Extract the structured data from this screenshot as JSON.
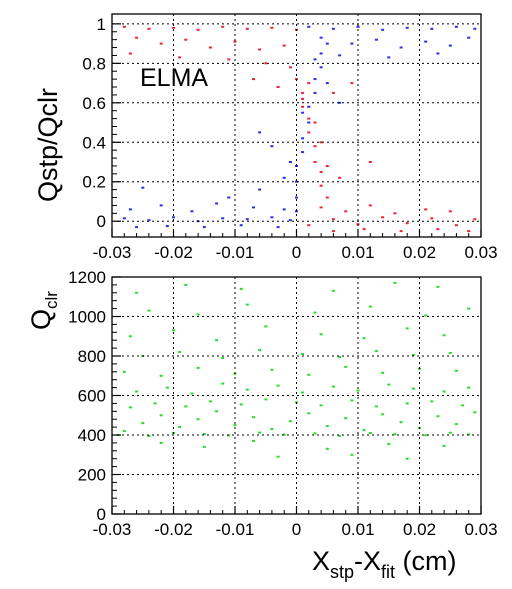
{
  "chart_data": [
    {
      "type": "scatter",
      "panel": "top",
      "title": "",
      "xlabel": "",
      "ylabel": "Qstp/Qclr",
      "annotation": "ELMA",
      "xlim": [
        -0.03,
        0.03
      ],
      "ylim": [
        -0.08,
        1.05
      ],
      "x_ticks": [
        -0.03,
        -0.02,
        -0.01,
        0,
        0.01,
        0.02,
        0.03
      ],
      "x_tick_labels": [
        "-0.03",
        "-0.02",
        "-0.01",
        "0",
        "0.01",
        "0.02",
        "0.03"
      ],
      "y_ticks": [
        0,
        0.2,
        0.4,
        0.6,
        0.8,
        1
      ],
      "y_tick_labels": [
        "0",
        "0.2",
        "0.4",
        "0.6",
        "0.8",
        "1"
      ],
      "grid": true,
      "series": [
        {
          "color": "#e8262b",
          "points": [
            [
              -0.028,
              0.985
            ],
            [
              -0.024,
              0.975
            ],
            [
              -0.02,
              0.98
            ],
            [
              -0.016,
              0.97
            ],
            [
              -0.012,
              0.985
            ],
            [
              -0.008,
              0.975
            ],
            [
              -0.004,
              0.98
            ],
            [
              0.0,
              0.97
            ],
            [
              -0.026,
              0.93
            ],
            [
              -0.022,
              0.9
            ],
            [
              -0.018,
              0.92
            ],
            [
              -0.014,
              0.88
            ],
            [
              -0.01,
              0.91
            ],
            [
              -0.006,
              0.87
            ],
            [
              -0.002,
              0.89
            ],
            [
              -0.027,
              0.85
            ],
            [
              -0.019,
              0.83
            ],
            [
              -0.011,
              0.82
            ],
            [
              -0.005,
              0.8
            ],
            [
              -0.001,
              0.78
            ],
            [
              0.0,
              0.72
            ],
            [
              0.001,
              0.65
            ],
            [
              0.001,
              0.58
            ],
            [
              0.002,
              0.52
            ],
            [
              0.002,
              0.45
            ],
            [
              0.003,
              0.38
            ],
            [
              0.003,
              0.3
            ],
            [
              0.004,
              0.25
            ],
            [
              0.004,
              0.18
            ],
            [
              0.005,
              0.12
            ],
            [
              0.002,
              0.7
            ],
            [
              0.001,
              0.62
            ],
            [
              0.003,
              0.5
            ],
            [
              0.004,
              0.4
            ],
            [
              0.005,
              0.28
            ],
            [
              -0.003,
              0.68
            ],
            [
              -0.007,
              0.72
            ],
            [
              0.006,
              0.65
            ],
            [
              0.009,
              0.7
            ],
            [
              0.007,
              0.22
            ],
            [
              0.012,
              0.3
            ],
            [
              0.002,
              -0.02
            ],
            [
              0.006,
              0.01
            ],
            [
              0.01,
              -0.015
            ],
            [
              0.014,
              0.02
            ],
            [
              0.018,
              -0.01
            ],
            [
              0.022,
              0.015
            ],
            [
              0.026,
              -0.02
            ],
            [
              0.029,
              0.01
            ],
            [
              0.004,
              0.07
            ],
            [
              0.008,
              0.05
            ],
            [
              0.012,
              0.08
            ],
            [
              0.016,
              0.04
            ],
            [
              0.021,
              0.06
            ],
            [
              0.025,
              0.05
            ],
            [
              0.006,
              -0.05
            ],
            [
              0.011,
              -0.04
            ],
            [
              0.017,
              -0.05
            ],
            [
              0.023,
              -0.04
            ],
            [
              0.028,
              -0.05
            ]
          ]
        },
        {
          "color": "#2a2ee6",
          "points": [
            [
              -0.028,
              0.015
            ],
            [
              -0.024,
              0.005
            ],
            [
              -0.02,
              0.02
            ],
            [
              -0.016,
              0.0
            ],
            [
              -0.012,
              0.015
            ],
            [
              -0.008,
              0.01
            ],
            [
              -0.004,
              0.02
            ],
            [
              -0.001,
              0.005
            ],
            [
              -0.026,
              -0.03
            ],
            [
              -0.021,
              -0.025
            ],
            [
              -0.015,
              -0.03
            ],
            [
              -0.009,
              -0.02
            ],
            [
              -0.003,
              -0.03
            ],
            [
              -0.027,
              0.06
            ],
            [
              -0.022,
              0.08
            ],
            [
              -0.017,
              0.05
            ],
            [
              -0.013,
              0.09
            ],
            [
              -0.007,
              0.07
            ],
            [
              -0.002,
              0.06
            ],
            [
              -0.025,
              0.17
            ],
            [
              -0.011,
              0.12
            ],
            [
              -0.006,
              0.16
            ],
            [
              0.0,
              0.05
            ],
            [
              0.0,
              0.12
            ],
            [
              0.0,
              0.2
            ],
            [
              0.0,
              0.28
            ],
            [
              0.001,
              0.35
            ],
            [
              0.001,
              0.42
            ],
            [
              0.002,
              0.5
            ],
            [
              0.002,
              0.58
            ],
            [
              0.003,
              0.65
            ],
            [
              0.003,
              0.72
            ],
            [
              0.004,
              0.78
            ],
            [
              0.004,
              0.85
            ],
            [
              0.005,
              0.9
            ],
            [
              -0.001,
              0.3
            ],
            [
              -0.002,
              0.22
            ],
            [
              0.001,
              0.55
            ],
            [
              0.003,
              0.82
            ],
            [
              -0.004,
              0.38
            ],
            [
              0.005,
              0.7
            ],
            [
              -0.006,
              0.45
            ],
            [
              0.007,
              0.6
            ],
            [
              0.002,
              0.985
            ],
            [
              0.006,
              0.975
            ],
            [
              0.01,
              0.985
            ],
            [
              0.014,
              0.97
            ],
            [
              0.018,
              0.98
            ],
            [
              0.022,
              0.975
            ],
            [
              0.026,
              0.985
            ],
            [
              0.029,
              0.975
            ],
            [
              0.004,
              0.93
            ],
            [
              0.009,
              0.9
            ],
            [
              0.013,
              0.92
            ],
            [
              0.017,
              0.88
            ],
            [
              0.021,
              0.91
            ],
            [
              0.025,
              0.89
            ],
            [
              0.028,
              0.93
            ],
            [
              0.007,
              0.84
            ],
            [
              0.015,
              0.83
            ],
            [
              0.023,
              0.85
            ]
          ]
        }
      ]
    },
    {
      "type": "scatter",
      "panel": "bottom",
      "title": "",
      "xlabel": "X_stp-X_fit (cm)",
      "xlabel_main": "X",
      "xlabel_sub1": "stp",
      "xlabel_mid": "-X",
      "xlabel_sub2": "fit",
      "xlabel_tail": " (cm)",
      "ylabel": "Q_clr",
      "ylabel_main": "Q",
      "ylabel_sub": "clr",
      "xlim": [
        -0.03,
        0.03
      ],
      "ylim": [
        0,
        1200
      ],
      "x_ticks": [
        -0.03,
        -0.02,
        -0.01,
        0,
        0.01,
        0.02,
        0.03
      ],
      "x_tick_labels": [
        "-0.03",
        "-0.02",
        "-0.01",
        "0",
        "0.01",
        "0.02",
        "0.03"
      ],
      "y_ticks": [
        0,
        200,
        400,
        600,
        800,
        1000,
        1200
      ],
      "y_tick_labels": [
        "0",
        "200",
        "400",
        "600",
        "800",
        "1000",
        "1200"
      ],
      "grid": true,
      "series": [
        {
          "color": "#25e025",
          "points": [
            [
              -0.028,
              420
            ],
            [
              -0.025,
              460
            ],
            [
              -0.022,
              500
            ],
            [
              -0.019,
              440
            ],
            [
              -0.016,
              480
            ],
            [
              -0.013,
              520
            ],
            [
              -0.01,
              450
            ],
            [
              -0.007,
              490
            ],
            [
              -0.004,
              430
            ],
            [
              -0.001,
              470
            ],
            [
              0.002,
              510
            ],
            [
              0.005,
              445
            ],
            [
              0.008,
              485
            ],
            [
              0.011,
              425
            ],
            [
              0.014,
              505
            ],
            [
              0.017,
              465
            ],
            [
              0.02,
              435
            ],
            [
              0.023,
              495
            ],
            [
              0.026,
              455
            ],
            [
              0.029,
              515
            ],
            [
              -0.027,
              540
            ],
            [
              -0.023,
              560
            ],
            [
              -0.018,
              545
            ],
            [
              -0.014,
              570
            ],
            [
              -0.009,
              555
            ],
            [
              -0.005,
              580
            ],
            [
              0.0,
              565
            ],
            [
              0.004,
              550
            ],
            [
              0.009,
              575
            ],
            [
              0.013,
              545
            ],
            [
              0.018,
              560
            ],
            [
              0.022,
              570
            ],
            [
              0.027,
              550
            ],
            [
              -0.029,
              400
            ],
            [
              -0.024,
              395
            ],
            [
              -0.02,
              410
            ],
            [
              -0.015,
              405
            ],
            [
              -0.011,
              398
            ],
            [
              -0.006,
              412
            ],
            [
              -0.002,
              402
            ],
            [
              0.003,
              408
            ],
            [
              0.007,
              396
            ],
            [
              0.012,
              410
            ],
            [
              0.016,
              404
            ],
            [
              0.021,
              399
            ],
            [
              0.025,
              411
            ],
            [
              0.028,
              403
            ],
            [
              -0.026,
              620
            ],
            [
              -0.021,
              640
            ],
            [
              -0.017,
              610
            ],
            [
              -0.012,
              660
            ],
            [
              -0.008,
              630
            ],
            [
              -0.003,
              650
            ],
            [
              0.001,
              615
            ],
            [
              0.006,
              645
            ],
            [
              0.01,
              625
            ],
            [
              0.015,
              655
            ],
            [
              0.019,
              635
            ],
            [
              0.024,
              620
            ],
            [
              0.028,
              640
            ],
            [
              -0.028,
              720
            ],
            [
              -0.022,
              700
            ],
            [
              -0.016,
              740
            ],
            [
              -0.01,
              710
            ],
            [
              -0.004,
              730
            ],
            [
              0.002,
              705
            ],
            [
              0.008,
              745
            ],
            [
              0.014,
              715
            ],
            [
              0.02,
              735
            ],
            [
              0.026,
              725
            ],
            [
              -0.025,
              800
            ],
            [
              -0.019,
              820
            ],
            [
              -0.012,
              790
            ],
            [
              -0.006,
              830
            ],
            [
              0.001,
              810
            ],
            [
              0.007,
              795
            ],
            [
              0.013,
              825
            ],
            [
              0.019,
              805
            ],
            [
              0.025,
              815
            ],
            [
              -0.027,
              900
            ],
            [
              -0.02,
              930
            ],
            [
              -0.013,
              880
            ],
            [
              -0.005,
              950
            ],
            [
              0.004,
              910
            ],
            [
              0.011,
              890
            ],
            [
              0.018,
              940
            ],
            [
              0.024,
              905
            ],
            [
              -0.024,
              1030
            ],
            [
              -0.016,
              1010
            ],
            [
              -0.008,
              1060
            ],
            [
              0.003,
              1020
            ],
            [
              0.012,
              1050
            ],
            [
              0.021,
              1005
            ],
            [
              0.028,
              1040
            ],
            [
              -0.026,
              1120
            ],
            [
              -0.018,
              1160
            ],
            [
              -0.009,
              1140
            ],
            [
              0.006,
              1130
            ],
            [
              0.016,
              1170
            ],
            [
              0.023,
              1150
            ],
            [
              -0.022,
              360
            ],
            [
              -0.015,
              340
            ],
            [
              -0.007,
              370
            ],
            [
              0.005,
              330
            ],
            [
              0.015,
              355
            ],
            [
              0.024,
              345
            ],
            [
              0.009,
              300
            ],
            [
              -0.003,
              290
            ],
            [
              0.018,
              280
            ]
          ]
        }
      ]
    }
  ]
}
